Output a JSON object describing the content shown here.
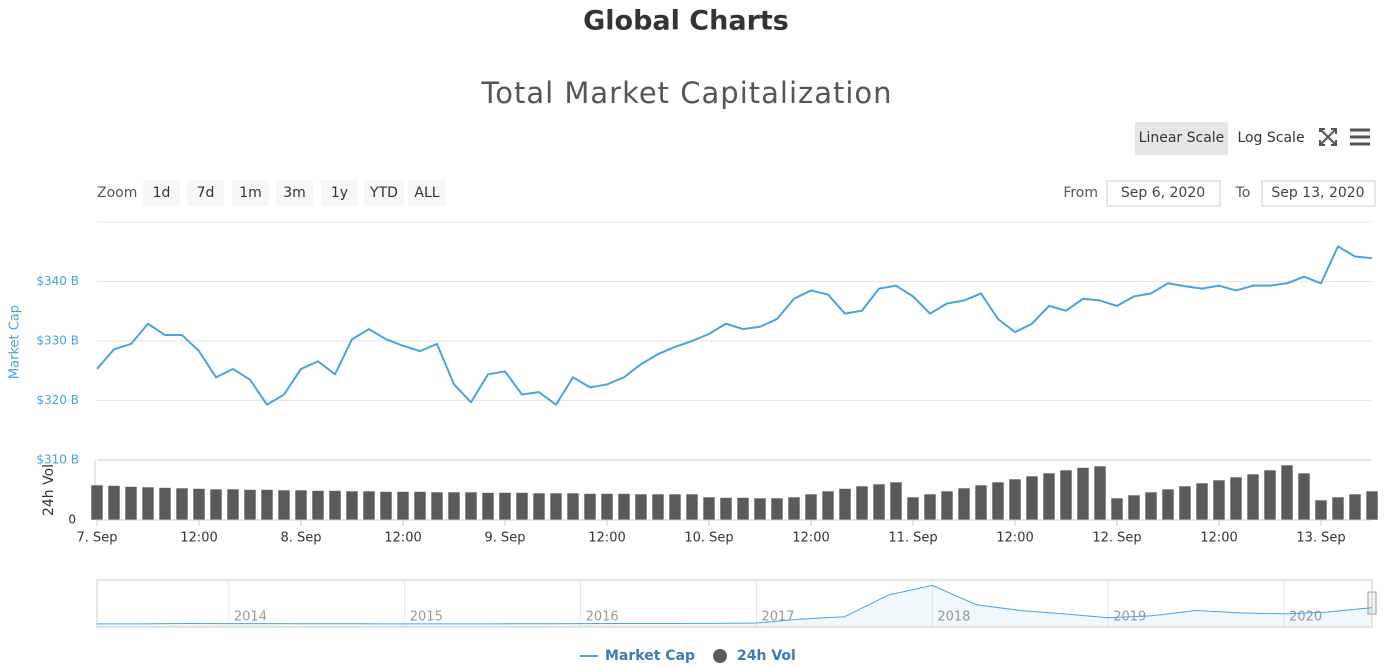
{
  "header": {
    "title": "Global Charts"
  },
  "toolbar": {
    "scale_buttons": [
      "Linear Scale",
      "Log Scale"
    ]
  },
  "zoom": {
    "label": "Zoom",
    "buttons": [
      "1d",
      "7d",
      "1m",
      "3m",
      "1y",
      "YTD",
      "ALL"
    ]
  },
  "range": {
    "from_label": "From",
    "from": "Sep 6, 2020",
    "to_label": "To",
    "to": "Sep 13, 2020"
  },
  "chart_data": {
    "type": "line",
    "title": "Total Market Capitalization",
    "log_scale": false,
    "grid": true,
    "categories": [
      "7. Sep",
      null,
      null,
      null,
      null,
      null,
      "12:00",
      null,
      null,
      null,
      null,
      null,
      "8. Sep",
      null,
      null,
      null,
      null,
      null,
      "12:00",
      null,
      null,
      null,
      null,
      null,
      "9. Sep",
      null,
      null,
      null,
      null,
      null,
      "12:00",
      null,
      null,
      null,
      null,
      null,
      "10. Sep",
      null,
      null,
      null,
      null,
      null,
      "12:00",
      null,
      null,
      null,
      null,
      null,
      "11. Sep",
      null,
      null,
      null,
      null,
      null,
      "12:00",
      null,
      null,
      null,
      null,
      null,
      "12. Sep",
      null,
      null,
      null,
      null,
      null,
      "12:00",
      null,
      null,
      null,
      null,
      null,
      "13. Sep",
      null,
      null,
      null
    ],
    "series": [
      {
        "name": "Market Cap",
        "color": "#4aa3df",
        "axis": "y",
        "values": [
          325.3,
          328.6,
          329.5,
          332.9,
          331,
          331,
          328.3,
          323.9,
          325.3,
          323.5,
          319.3,
          321,
          325.3,
          326.6,
          324.4,
          330.3,
          332,
          330.3,
          329.2,
          328.3,
          329.5,
          322.7,
          319.7,
          324.4,
          324.9,
          321,
          321.4,
          319.3,
          323.9,
          322.2,
          322.7,
          323.9,
          326.1,
          327.8,
          329,
          330,
          331.2,
          332.9,
          332,
          332.4,
          333.7,
          337.1,
          338.5,
          337.8,
          334.6,
          335.1,
          338.8,
          339.3,
          337.5,
          334.6,
          336.3,
          336.8,
          338,
          333.7,
          331.5,
          332.9,
          335.9,
          335.1,
          337.1,
          336.8,
          335.9,
          337.5,
          338,
          339.7,
          339.2,
          338.8,
          339.3,
          338.5,
          339.3,
          339.3,
          339.7,
          340.8,
          339.7,
          345.9,
          344.2,
          343.9
        ]
      },
      {
        "name": "24h Vol",
        "color": "#5a5a5a",
        "axis": "y2",
        "type": "bar",
        "values": [
          70,
          69,
          67,
          66,
          65,
          64,
          63,
          62,
          62,
          61,
          61,
          60,
          60,
          59,
          59,
          58,
          58,
          57,
          57,
          57,
          56,
          56,
          56,
          55,
          55,
          55,
          54,
          54,
          54,
          53,
          53,
          53,
          52,
          52,
          52,
          52,
          46,
          45,
          45,
          44,
          44,
          46,
          52,
          58,
          63,
          68,
          72,
          76,
          46,
          52,
          58,
          64,
          70,
          76,
          82,
          88,
          94,
          100,
          105,
          108,
          44,
          50,
          56,
          62,
          68,
          74,
          80,
          86,
          92,
          100,
          110,
          94,
          40,
          46,
          52,
          58
        ]
      }
    ],
    "y_axis_label": "Market Cap",
    "ylim": [
      310,
      350
    ],
    "yticks": [
      {
        "value": 310,
        "label": "$310 B"
      },
      {
        "value": 320,
        "label": "$320 B"
      },
      {
        "value": 330,
        "label": "$330 B"
      },
      {
        "value": 340,
        "label": "$340 B"
      }
    ],
    "y2_axis_label": "24h Vol",
    "y2lim": [
      0,
      120
    ],
    "y2ticks": [
      0
    ],
    "navigator": {
      "categories": [
        null,
        null,
        null,
        "2014",
        null,
        null,
        null,
        "2015",
        null,
        null,
        null,
        "2016",
        null,
        null,
        null,
        "2017",
        null,
        null,
        null,
        "2018",
        null,
        null,
        null,
        "2019",
        null,
        null,
        null,
        "2020",
        null,
        null
      ],
      "values": [
        1.5,
        1.5,
        10,
        7,
        8,
        6,
        4,
        3.5,
        3.5,
        3.5,
        6,
        7,
        10,
        10,
        14,
        20,
        100,
        150,
        600,
        800,
        400,
        280,
        210,
        130,
        170,
        280,
        230,
        210,
        250,
        340
      ],
      "ylim": [
        0,
        850
      ]
    }
  }
}
